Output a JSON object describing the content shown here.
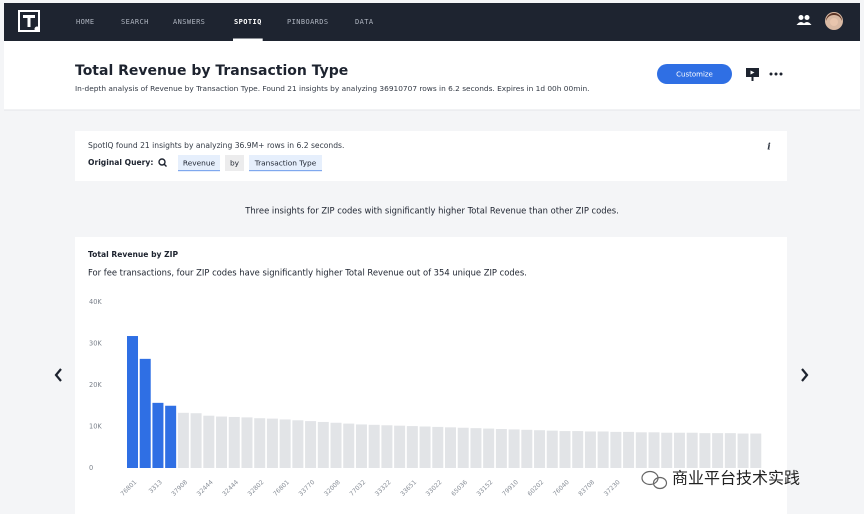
{
  "nav": {
    "items": [
      "HOME",
      "SEARCH",
      "ANSWERS",
      "SPOTIQ",
      "PINBOARDS",
      "DATA"
    ],
    "active_index": 3
  },
  "header": {
    "title": "Total Revenue by Transaction Type",
    "subtitle": "In-depth analysis of Revenue by Transaction Type. Found 21 insights by analyzing 36910707 rows in 6.2 seconds. Expires in 1d 00h 00min.",
    "button": "Customize"
  },
  "summary": {
    "text": "SpotIQ found 21 insights by analyzing 36.9M+ rows in 6.2 seconds.",
    "query_label": "Original Query:",
    "chips": [
      "Revenue",
      "by",
      "Transaction Type"
    ],
    "info": "i"
  },
  "insight_heading": "Three insights for ZIP codes with significantly higher Total Revenue than other ZIP codes.",
  "chart_data": {
    "type": "bar",
    "title": "Total Revenue by ZIP",
    "subtitle": "For fee transactions, four ZIP codes have significantly higher Total Revenue out of 354 unique ZIP codes.",
    "categories": [
      "76801",
      null,
      "3313",
      null,
      "37908",
      null,
      "32444",
      null,
      "32444",
      null,
      "32802",
      null,
      "76801",
      null,
      "33770",
      null,
      "32008",
      null,
      "77032",
      null,
      "33322",
      null,
      "33651",
      null,
      "33022",
      null,
      "65036",
      null,
      "33152",
      null,
      "79910",
      null,
      "60202",
      null,
      "76040",
      null,
      "83708",
      null,
      "37230",
      null,
      null,
      null,
      null,
      null,
      null,
      null,
      null,
      null,
      null,
      null
    ],
    "values": [
      31800,
      26300,
      15700,
      15000,
      13300,
      13200,
      12600,
      12400,
      12300,
      12200,
      12000,
      11900,
      11700,
      11500,
      11300,
      11100,
      10900,
      10700,
      10500,
      10400,
      10300,
      10200,
      10100,
      10000,
      9900,
      9800,
      9700,
      9600,
      9500,
      9400,
      9300,
      9200,
      9100,
      9000,
      8900,
      8900,
      8800,
      8800,
      8700,
      8700,
      8600,
      8600,
      8500,
      8500,
      8500,
      8400,
      8400,
      8400,
      8300,
      8300
    ],
    "bar_colors": [
      "#2f6fe4",
      "#2f6fe4",
      "#2f6fe4",
      "#2f6fe4",
      "#e2e4e7",
      "#e2e4e7",
      "#e2e4e7",
      "#e2e4e7",
      "#e2e4e7",
      "#e2e4e7",
      "#e2e4e7",
      "#e2e4e7",
      "#e2e4e7",
      "#e2e4e7",
      "#e2e4e7",
      "#e2e4e7",
      "#e2e4e7",
      "#e2e4e7",
      "#e2e4e7",
      "#e2e4e7",
      "#e2e4e7",
      "#e2e4e7",
      "#e2e4e7",
      "#e2e4e7",
      "#e2e4e7",
      "#e2e4e7",
      "#e2e4e7",
      "#e2e4e7",
      "#e2e4e7",
      "#e2e4e7",
      "#e2e4e7",
      "#e2e4e7",
      "#e2e4e7",
      "#e2e4e7",
      "#e2e4e7",
      "#e2e4e7",
      "#e2e4e7",
      "#e2e4e7",
      "#e2e4e7",
      "#e2e4e7",
      "#e2e4e7",
      "#e2e4e7",
      "#e2e4e7",
      "#e2e4e7",
      "#e2e4e7",
      "#e2e4e7",
      "#e2e4e7",
      "#e2e4e7",
      "#e2e4e7",
      "#e2e4e7"
    ],
    "ylim": [
      0,
      40000
    ],
    "yticks": [
      0,
      {
        "value": 10000,
        "label": "10K"
      },
      {
        "value": 20000,
        "label": "20K"
      },
      {
        "value": 30000,
        "label": "30K"
      },
      {
        "value": 40000,
        "label": "40K"
      }
    ],
    "grid": false
  },
  "watermark": "商业平台技术实践"
}
